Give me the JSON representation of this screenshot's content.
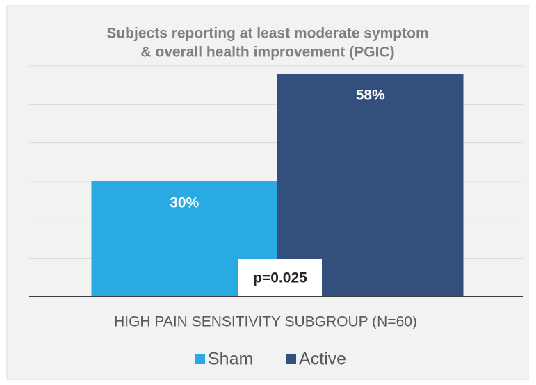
{
  "chart_data": {
    "type": "bar",
    "title": [
      "Subjects reporting at least moderate symptom",
      "& overall health improvement (PGIC)"
    ],
    "categories": [
      "HIGH PAIN SENSITIVITY SUBGROUP (N=60)"
    ],
    "series": [
      {
        "name": "Sham",
        "color": "#29abe2",
        "values": [
          30
        ],
        "value_labels": [
          "30%"
        ]
      },
      {
        "name": "Active",
        "color": "#33507d",
        "values": [
          58
        ],
        "value_labels": [
          "58%"
        ]
      }
    ],
    "ylim": [
      0,
      60
    ],
    "yticks": [
      0,
      10,
      20,
      30,
      40,
      50,
      60
    ],
    "grid": true,
    "annotation": "p=0.025",
    "legend": "bottom"
  }
}
